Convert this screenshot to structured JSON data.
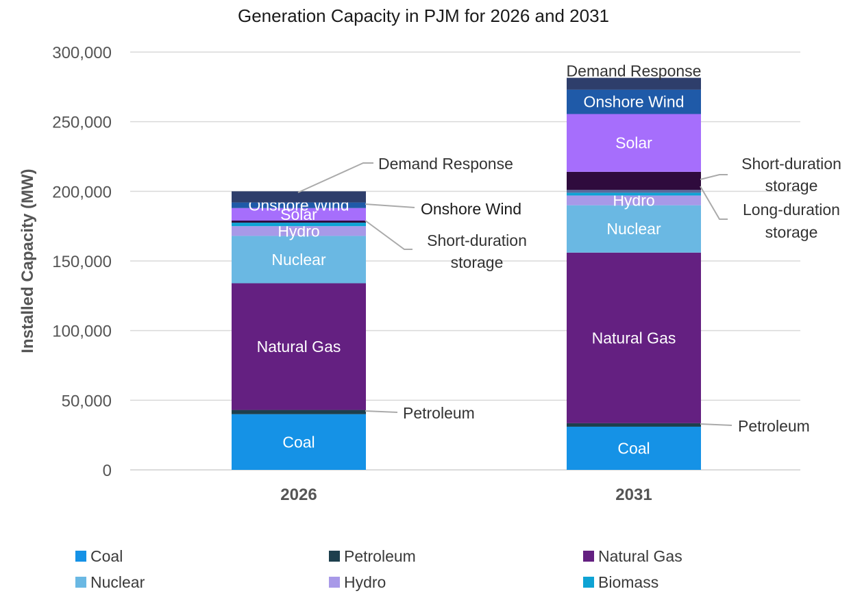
{
  "chart_data": {
    "type": "bar",
    "stacked": true,
    "title": "Generation Capacity in PJM for 2026 and 2031",
    "xlabel": "",
    "ylabel": "Installed Capacity (MW)",
    "ylim": [
      0,
      300000
    ],
    "yticks": [
      0,
      50000,
      100000,
      150000,
      200000,
      250000,
      300000
    ],
    "ytick_labels": [
      "0",
      "50,000",
      "100,000",
      "150,000",
      "200,000",
      "250,000",
      "300,000"
    ],
    "grid": true,
    "categories": [
      "2026",
      "2031"
    ],
    "series": [
      {
        "name": "Coal",
        "color": "#1592e6",
        "values": [
          40000,
          31000
        ],
        "label_color": "#ffffff",
        "show_label": true
      },
      {
        "name": "Petroleum",
        "color": "#1d3f4d",
        "values": [
          3000,
          2500
        ],
        "label_color": "#333333",
        "show_label": false
      },
      {
        "name": "Natural Gas",
        "color": "#642081",
        "values": [
          91000,
          122500
        ],
        "label_color": "#ffffff",
        "show_label": true
      },
      {
        "name": "Nuclear",
        "color": "#6ab8e3",
        "values": [
          34000,
          34000
        ],
        "label_color": "#ffffff",
        "show_label": true
      },
      {
        "name": "Hydro",
        "color": "#a899e8",
        "values": [
          7000,
          7000
        ],
        "label_color": "#ffffff",
        "show_label": true
      },
      {
        "name": "Biomass",
        "color": "#0ea3d4",
        "values": [
          2500,
          2000
        ],
        "label_color": "#333333",
        "show_label": false
      },
      {
        "name": "Long-duration storage",
        "color": "#5a6a9c",
        "values": [
          0,
          2000
        ],
        "label_color": "#333333",
        "show_label": false
      },
      {
        "name": "Short-duration storage",
        "color": "#2f0b3d",
        "values": [
          1500,
          13000
        ],
        "label_color": "#333333",
        "show_label": false
      },
      {
        "name": "Solar",
        "color": "#a66efc",
        "values": [
          9000,
          41500
        ],
        "label_color": "#ffffff",
        "show_label": true
      },
      {
        "name": "Onshore Wind",
        "color": "#1f5aa8",
        "values": [
          4000,
          17500
        ],
        "label_color": "#ffffff",
        "show_label": true
      },
      {
        "name": "Demand Response",
        "color": "#2e3e6b",
        "values": [
          8000,
          8500
        ],
        "label_color": "#333333",
        "show_label": true
      }
    ],
    "annotations": {
      "2026": {
        "demand_response": "Demand Response",
        "onshore_wind": "Onshore Wind",
        "short_duration_1": "Short-duration",
        "short_duration_2": "storage",
        "petroleum": "Petroleum"
      },
      "2031": {
        "short_duration_1": "Short-duration",
        "short_duration_2": "storage",
        "long_duration_1": "Long-duration",
        "long_duration_2": "storage",
        "petroleum": "Petroleum"
      }
    },
    "legend": [
      {
        "name": "Coal",
        "color": "#1592e6"
      },
      {
        "name": "Petroleum",
        "color": "#1d3f4d"
      },
      {
        "name": "Natural Gas",
        "color": "#642081"
      },
      {
        "name": "Nuclear",
        "color": "#6ab8e3"
      },
      {
        "name": "Hydro",
        "color": "#a899e8"
      },
      {
        "name": "Biomass",
        "color": "#0ea3d4"
      }
    ]
  }
}
